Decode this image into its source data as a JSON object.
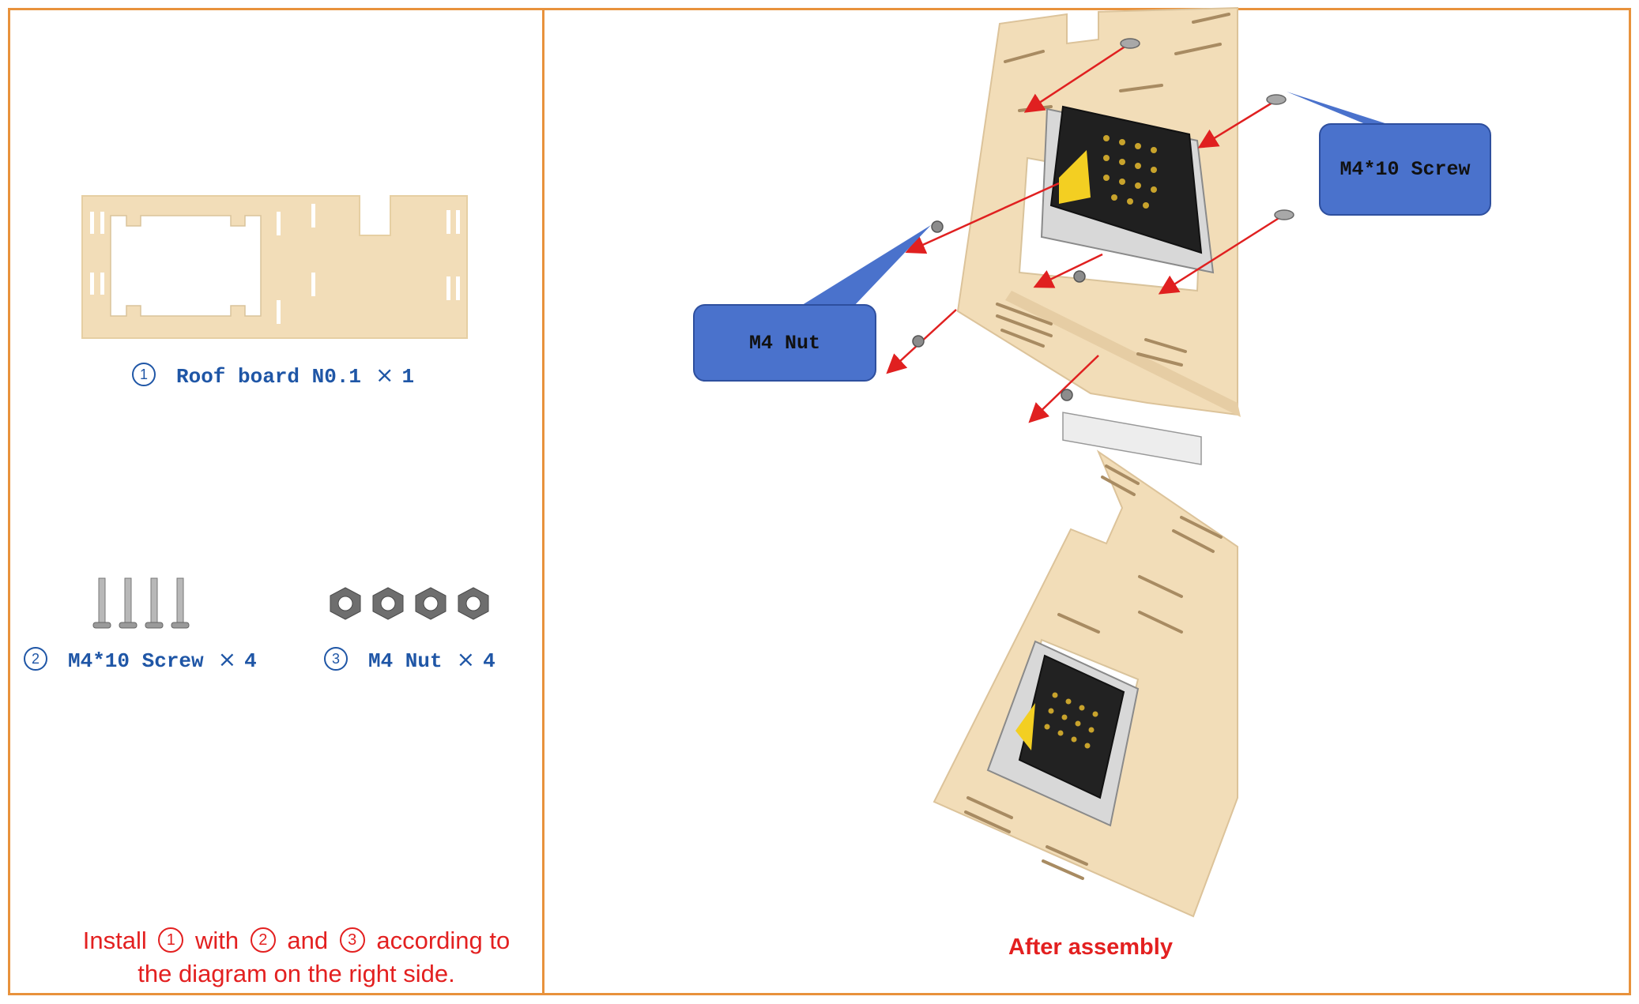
{
  "parts": {
    "roof_board": {
      "number": "1",
      "label": "Roof board N0.1",
      "times": "×",
      "qty": "1"
    },
    "screw": {
      "number": "2",
      "label": "M4*10 Screw",
      "times": "×",
      "qty": "4"
    },
    "nut": {
      "number": "3",
      "label": "M4 Nut",
      "times": "×",
      "qty": "4"
    }
  },
  "instruction": {
    "word_install": "Install",
    "num1": "1",
    "word_with": "with",
    "num2": "2",
    "word_and": "and",
    "num3": "3",
    "word_according": "according to",
    "line2": "the diagram on the right side."
  },
  "callouts": {
    "nut": "M4 Nut",
    "screw": "M4*10 Screw"
  },
  "after_label": "After assembly",
  "colors": {
    "frame": "#E8923C",
    "label_blue": "#1F56A6",
    "instruction_red": "#E32020",
    "callout_fill": "#4A72CC",
    "wood": "#F2DDB8",
    "arrow": "#E02020"
  }
}
